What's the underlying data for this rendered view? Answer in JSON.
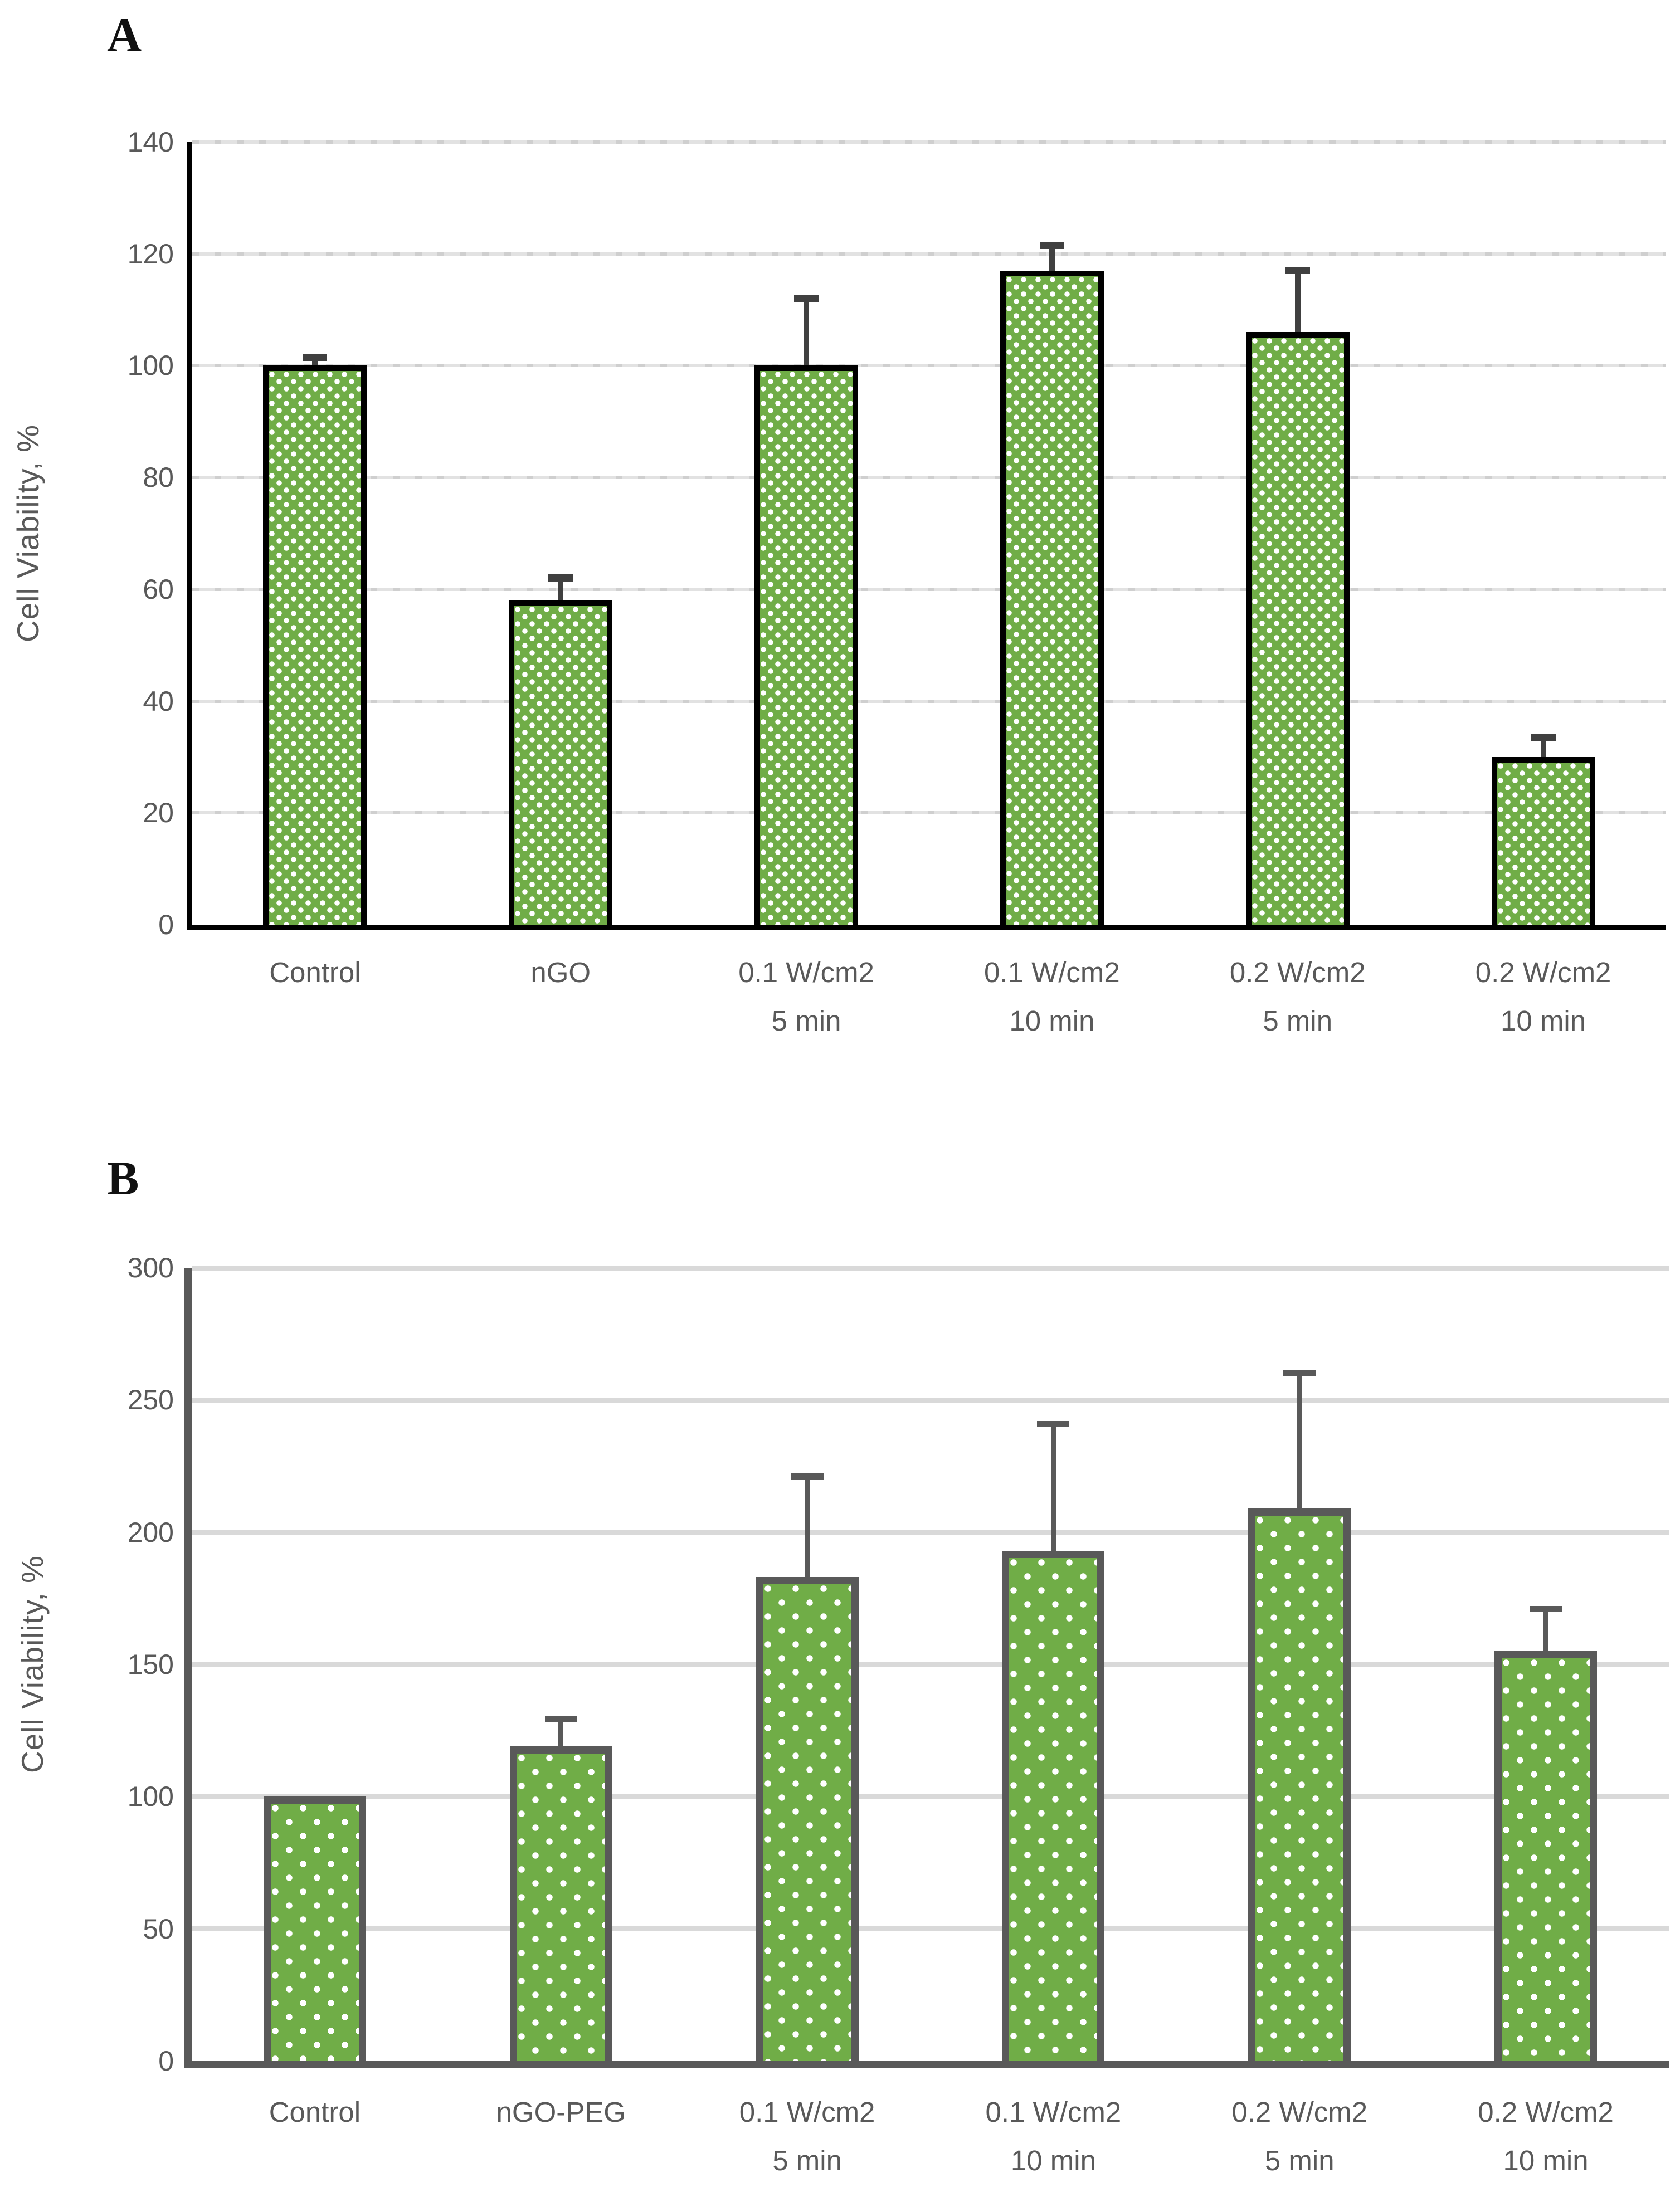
{
  "figure_title": "",
  "chart_data": [
    {
      "type": "bar",
      "panel_letter": "A",
      "title": "",
      "xlabel": "",
      "ylabel": "Cell Viability, %",
      "categories": [
        "Control",
        "nGO",
        "0.1 W/cm2\n5 min",
        "0.1 W/cm2\n10 min",
        "0.2 W/cm2\n5 min",
        "0.2 W/cm2\n10 min"
      ],
      "values": [
        100,
        58,
        100,
        117,
        106,
        30
      ],
      "errors_plus": [
        1.5,
        4,
        12,
        4.5,
        11,
        3.5
      ],
      "ylim": [
        0,
        140
      ],
      "ytick_step": 20,
      "yticks": [
        0,
        20,
        40,
        60,
        80,
        100,
        120,
        140
      ],
      "grid": true,
      "legend": false,
      "bar_color": "#70AD47",
      "bar_pattern": "dense-check",
      "bar_border_color": "#000000",
      "error_color": "#404040",
      "gridline_color": "#d9d9d9",
      "axis_color": "#000000",
      "text_color": "#595959"
    },
    {
      "type": "bar",
      "panel_letter": "B",
      "title": "",
      "xlabel": "",
      "ylabel": "Cell Viability, %",
      "categories": [
        "Control",
        "nGO-PEG",
        "0.1 W/cm2\n5 min",
        "0.1 W/cm2\n10 min",
        "0.2 W/cm2\n5 min",
        "0.2 W/cm2\n10 min"
      ],
      "values": [
        100,
        119,
        183,
        193,
        209,
        155
      ],
      "errors_plus": [
        0,
        10.5,
        38,
        48,
        51,
        16
      ],
      "ylim": [
        0,
        300
      ],
      "ytick_step": 50,
      "yticks": [
        0,
        50,
        100,
        150,
        200,
        250,
        300
      ],
      "grid": true,
      "legend": false,
      "bar_color": "#70AD47",
      "bar_pattern": "sparse-dot",
      "bar_border_color": "#595959",
      "error_color": "#595959",
      "gridline_color": "#d9d9d9",
      "axis_color": "#595959",
      "text_color": "#595959"
    }
  ]
}
